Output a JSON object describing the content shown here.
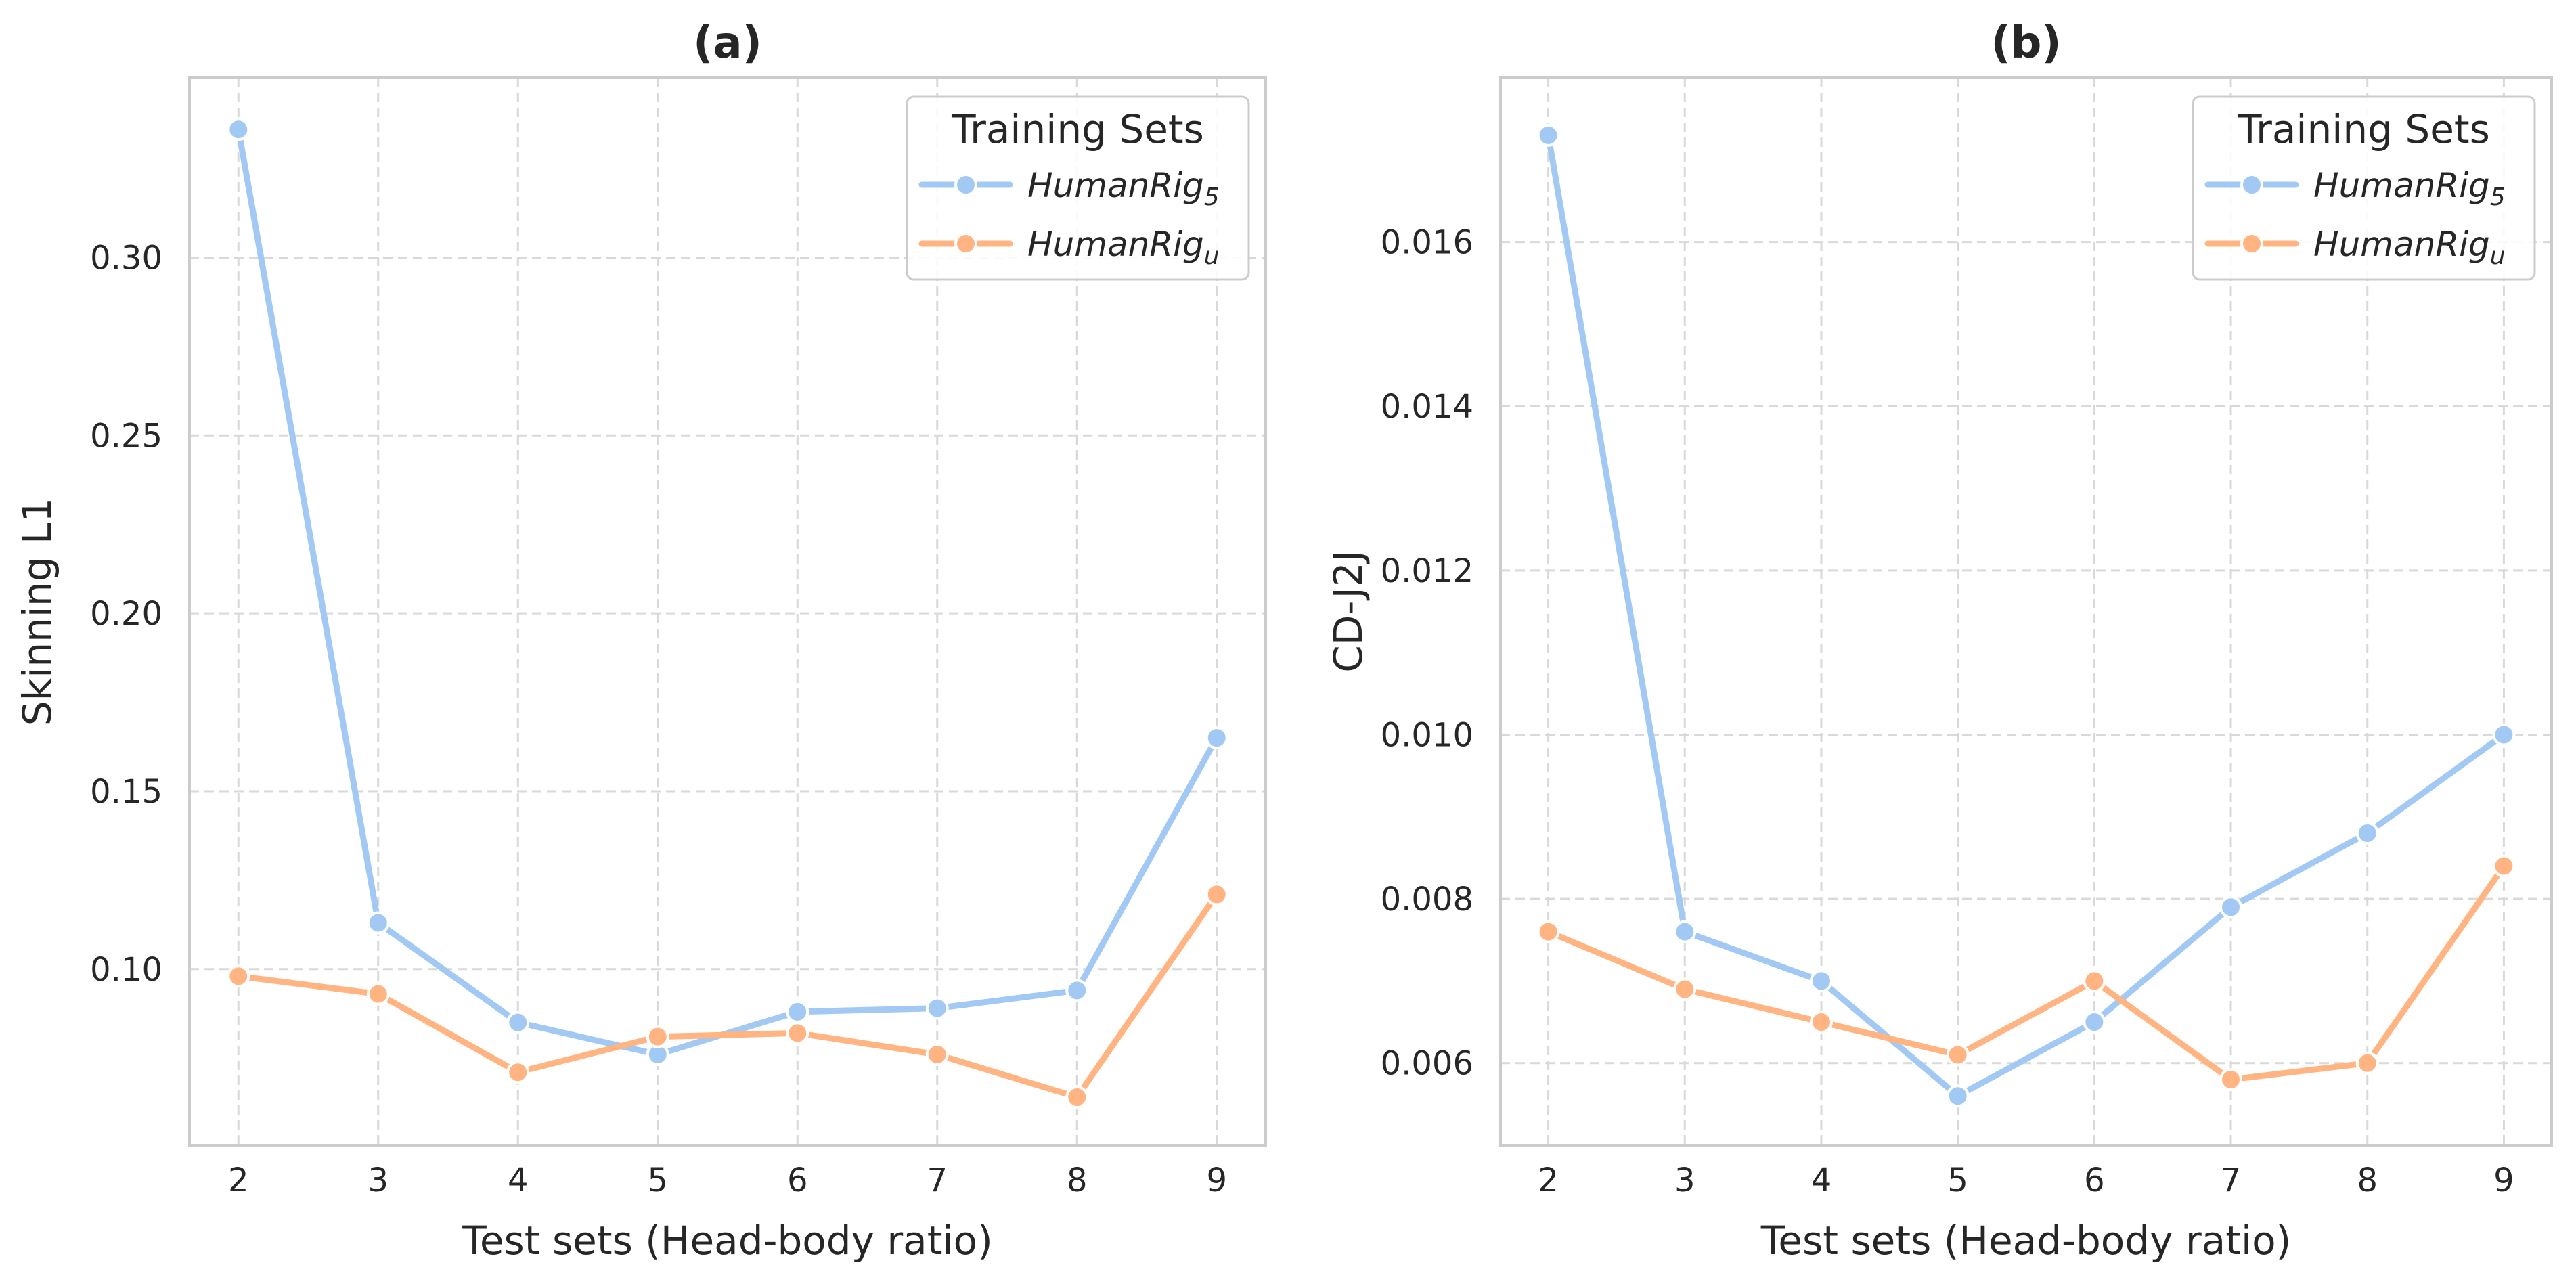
{
  "colors": {
    "series_1": "#a1c9f4",
    "series_2": "#ffb482",
    "grid": "#d9d9d9",
    "frame": "#cccccc",
    "text": "#262626"
  },
  "chart_data": [
    {
      "type": "line",
      "title": "(a)",
      "xlabel": "Test sets (Head-body ratio)",
      "ylabel": "Skinning L1",
      "x": [
        2,
        3,
        4,
        5,
        6,
        7,
        8,
        9
      ],
      "x_tick_labels": [
        "2",
        "3",
        "4",
        "5",
        "6",
        "7",
        "8",
        "9"
      ],
      "xlim": [
        1.65,
        9.35
      ],
      "ylim": [
        0.0505,
        0.3505
      ],
      "y_ticks": [
        0.1,
        0.15,
        0.2,
        0.25,
        0.3
      ],
      "y_tick_labels": [
        "0.10",
        "0.15",
        "0.20",
        "0.25",
        "0.30"
      ],
      "grid": true,
      "legend": {
        "title": "Training Sets",
        "placement": "top-right",
        "entries": [
          {
            "base": "HumanRig",
            "sub": "5"
          },
          {
            "base": "HumanRig",
            "sub": "u"
          }
        ]
      },
      "series": [
        {
          "name": "HumanRig5",
          "values": [
            0.336,
            0.113,
            0.085,
            0.076,
            0.088,
            0.089,
            0.094,
            0.165
          ]
        },
        {
          "name": "HumanRigu",
          "values": [
            0.098,
            0.093,
            0.071,
            0.081,
            0.082,
            0.076,
            0.064,
            0.121
          ]
        }
      ]
    },
    {
      "type": "line",
      "title": "(b)",
      "xlabel": "Test sets (Head-body ratio)",
      "ylabel": "CD-J2J",
      "x": [
        2,
        3,
        4,
        5,
        6,
        7,
        8,
        9
      ],
      "x_tick_labels": [
        "2",
        "3",
        "4",
        "5",
        "6",
        "7",
        "8",
        "9"
      ],
      "xlim": [
        1.65,
        9.35
      ],
      "ylim": [
        0.005,
        0.018
      ],
      "y_ticks": [
        0.006,
        0.008,
        0.01,
        0.012,
        0.014,
        0.016
      ],
      "y_tick_labels": [
        "0.006",
        "0.008",
        "0.010",
        "0.012",
        "0.014",
        "0.016"
      ],
      "grid": true,
      "legend": {
        "title": "Training Sets",
        "placement": "top-right",
        "entries": [
          {
            "base": "HumanRig",
            "sub": "5"
          },
          {
            "base": "HumanRig",
            "sub": "u"
          }
        ]
      },
      "series": [
        {
          "name": "HumanRig5",
          "values": [
            0.0173,
            0.0076,
            0.007,
            0.0056,
            0.0065,
            0.0079,
            0.0088,
            0.01
          ]
        },
        {
          "name": "HumanRigu",
          "values": [
            0.0076,
            0.0069,
            0.0065,
            0.0061,
            0.007,
            0.0058,
            0.006,
            0.0084
          ]
        }
      ]
    }
  ]
}
